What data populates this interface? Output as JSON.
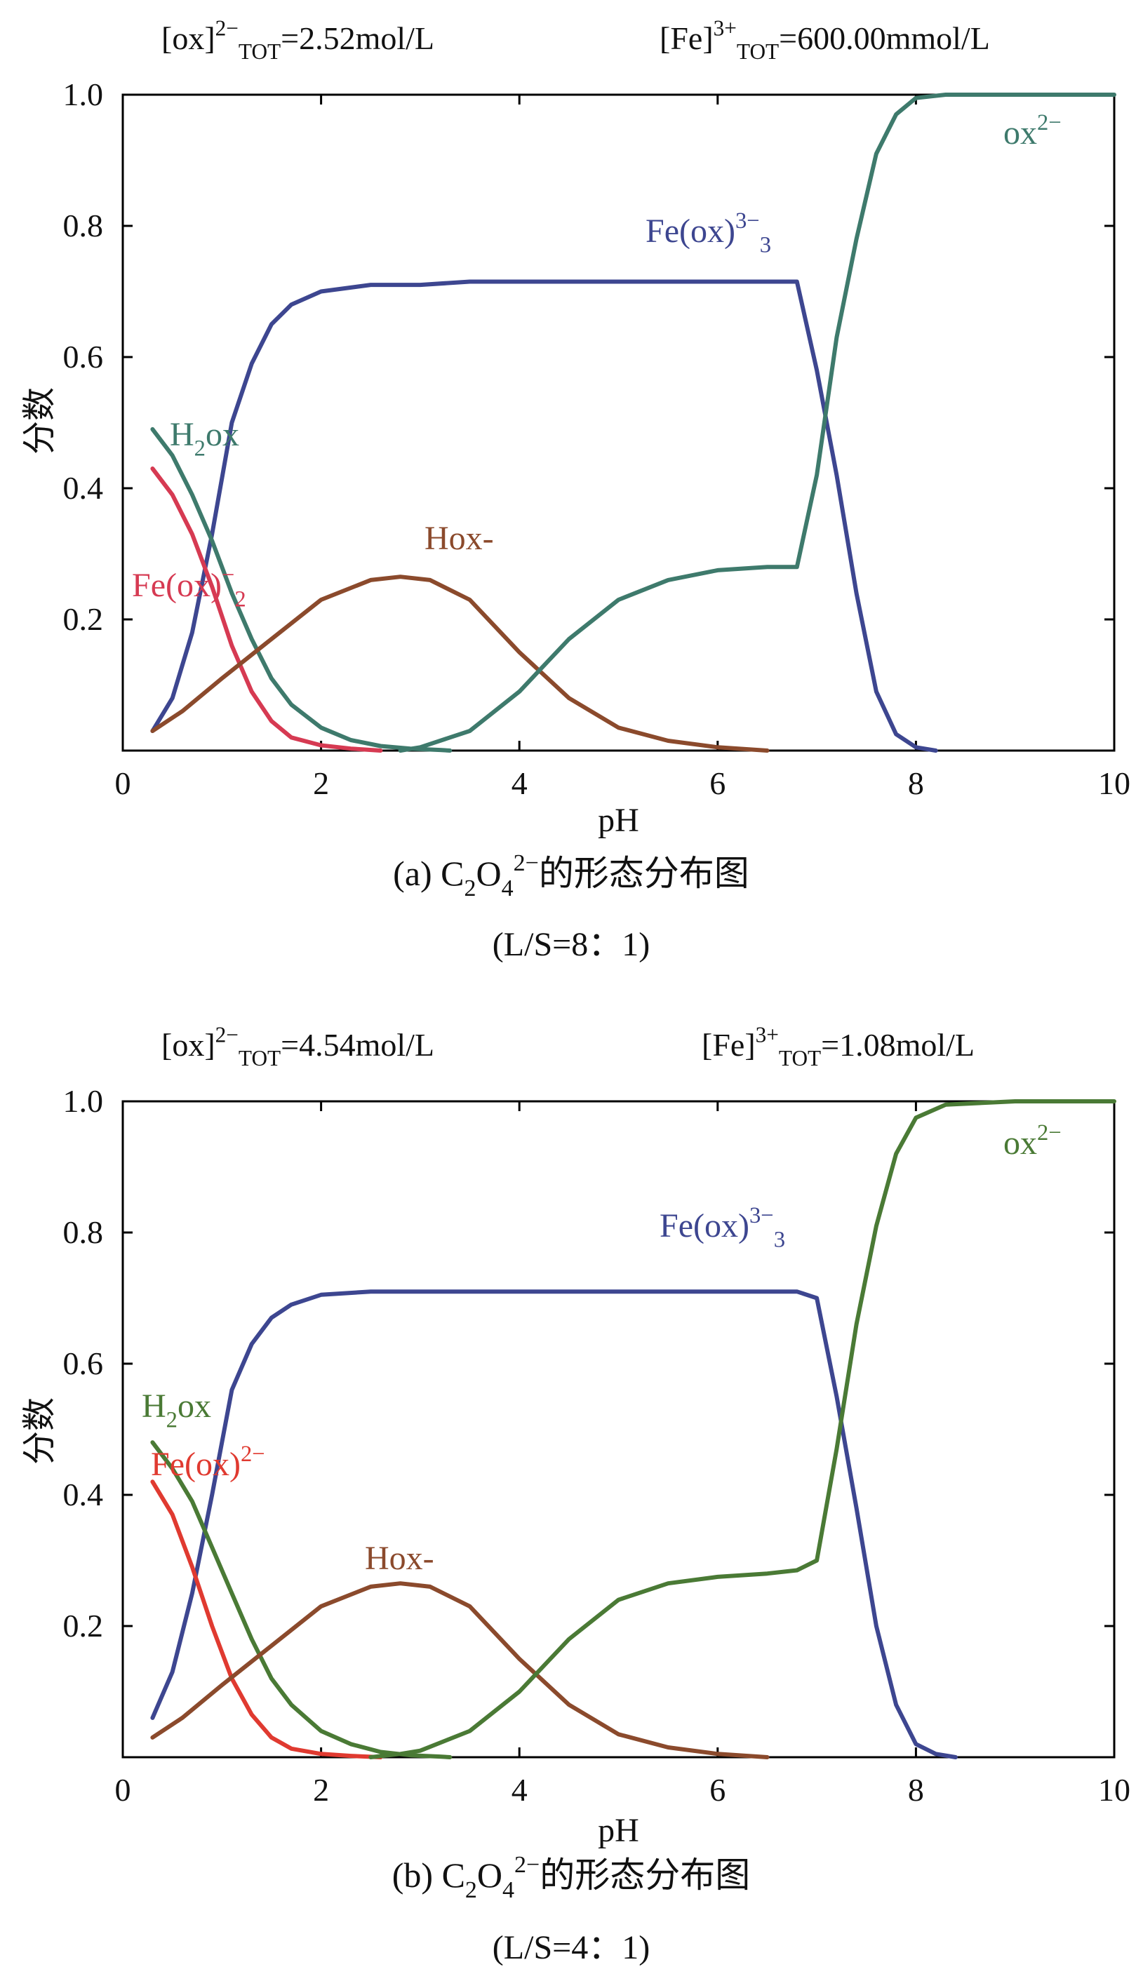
{
  "chart_data": [
    {
      "type": "line",
      "header_left": {
        "base": "[ox",
        "sup": "2−",
        "mid": "]",
        "sub": "TOT",
        "tail": "=2.52mol/L"
      },
      "header_right": {
        "base": "[Fe",
        "sup": "3+",
        "mid": "]",
        "sub": "TOT",
        "tail": "=600.00mmol/L"
      },
      "caption": {
        "pre": "(a) C",
        "sub1": "2",
        "mid": "O",
        "sub2": "4",
        "sup": "2−",
        "post": "的形态分布图"
      },
      "subcaption": "(L/S=8：1)",
      "xlabel": "pH",
      "ylabel": "分数",
      "xlim": [
        0,
        10
      ],
      "ylim": [
        0,
        1.0
      ],
      "xticks": [
        "0",
        "2",
        "4",
        "6",
        "8",
        "10"
      ],
      "yticks": [
        "0.2",
        "0.4",
        "0.6",
        "0.8",
        "1.0"
      ],
      "series": [
        {
          "name": "Fe(ox)3 3−",
          "color": "#3d4690",
          "label": {
            "base": "Fe(ox)",
            "sub": "3",
            "sup": "3−"
          },
          "x": [
            0.3,
            0.5,
            0.7,
            0.9,
            1.1,
            1.3,
            1.5,
            1.7,
            2.0,
            2.5,
            3.0,
            3.5,
            4.0,
            4.5,
            5.0,
            5.5,
            6.0,
            6.5,
            6.8,
            7.0,
            7.2,
            7.4,
            7.6,
            7.8,
            8.0,
            8.2
          ],
          "values": [
            0.03,
            0.08,
            0.18,
            0.33,
            0.5,
            0.59,
            0.65,
            0.68,
            0.7,
            0.71,
            0.71,
            0.715,
            0.715,
            0.715,
            0.715,
            0.715,
            0.715,
            0.715,
            0.715,
            0.58,
            0.42,
            0.24,
            0.09,
            0.025,
            0.005,
            0.0
          ]
        },
        {
          "name": "H2ox",
          "color": "#3e7a6c",
          "label": {
            "base": "H",
            "sub": "2",
            "tail": "ox"
          },
          "x": [
            0.3,
            0.5,
            0.7,
            0.9,
            1.1,
            1.3,
            1.5,
            1.7,
            2.0,
            2.3,
            2.6,
            2.9,
            3.2,
            3.3
          ],
          "values": [
            0.49,
            0.45,
            0.39,
            0.32,
            0.24,
            0.17,
            0.11,
            0.07,
            0.035,
            0.016,
            0.007,
            0.003,
            0.001,
            0.0
          ]
        },
        {
          "name": "Fe(ox)2 −",
          "color": "#d63a52",
          "label": {
            "base": "Fe(ox)",
            "sub": "2",
            "sup": "−"
          },
          "x": [
            0.3,
            0.5,
            0.7,
            0.9,
            1.1,
            1.3,
            1.5,
            1.7,
            2.0,
            2.3,
            2.6
          ],
          "values": [
            0.43,
            0.39,
            0.33,
            0.25,
            0.16,
            0.09,
            0.045,
            0.02,
            0.008,
            0.003,
            0.0
          ]
        },
        {
          "name": "Hox-",
          "color": "#8b4a2c",
          "label": {
            "base": "Hox-"
          },
          "x": [
            0.3,
            0.6,
            1.0,
            1.5,
            2.0,
            2.5,
            2.8,
            3.1,
            3.5,
            4.0,
            4.5,
            5.0,
            5.5,
            6.0,
            6.5
          ],
          "values": [
            0.03,
            0.06,
            0.11,
            0.17,
            0.23,
            0.26,
            0.265,
            0.26,
            0.23,
            0.15,
            0.08,
            0.035,
            0.015,
            0.005,
            0.0
          ]
        },
        {
          "name": "ox2−",
          "color": "#3e7a6c",
          "label": {
            "base": "ox",
            "sup": "2−"
          },
          "x": [
            2.8,
            3.0,
            3.5,
            4.0,
            4.5,
            5.0,
            5.5,
            6.0,
            6.5,
            6.8,
            7.0,
            7.2,
            7.4,
            7.6,
            7.8,
            8.0,
            8.3,
            9.0,
            10.0
          ],
          "values": [
            0.0,
            0.005,
            0.03,
            0.09,
            0.17,
            0.23,
            0.26,
            0.275,
            0.28,
            0.28,
            0.42,
            0.63,
            0.78,
            0.91,
            0.97,
            0.995,
            1.0,
            1.0,
            1.0
          ]
        }
      ]
    },
    {
      "type": "line",
      "header_left": {
        "base": "[ox",
        "sup": "2−",
        "mid": "]",
        "sub": "TOT",
        "tail": "=4.54mol/L"
      },
      "header_right": {
        "base": "[Fe",
        "sup": "3+",
        "mid": "]",
        "sub": "TOT",
        "tail": "=1.08mol/L"
      },
      "caption": {
        "pre": "(b) C",
        "sub1": "2",
        "mid": "O",
        "sub2": "4",
        "sup": "2−",
        "post": "的形态分布图"
      },
      "subcaption": "(L/S=4：1)",
      "xlabel": "pH",
      "ylabel": "分数",
      "xlim": [
        0,
        10
      ],
      "ylim": [
        0,
        1.0
      ],
      "xticks": [
        "0",
        "2",
        "4",
        "6",
        "8",
        "10"
      ],
      "yticks": [
        "0.2",
        "0.4",
        "0.6",
        "0.8",
        "1.0"
      ],
      "series": [
        {
          "name": "Fe(ox)3 3−",
          "color": "#3d4690",
          "label": {
            "base": "Fe(ox)",
            "sub": "3",
            "sup": "3−"
          },
          "x": [
            0.3,
            0.5,
            0.7,
            0.9,
            1.1,
            1.3,
            1.5,
            1.7,
            2.0,
            2.5,
            3.0,
            3.5,
            4.0,
            4.5,
            5.0,
            5.5,
            6.0,
            6.5,
            6.8,
            7.0,
            7.2,
            7.4,
            7.6,
            7.8,
            8.0,
            8.2,
            8.4
          ],
          "values": [
            0.06,
            0.13,
            0.25,
            0.4,
            0.56,
            0.63,
            0.67,
            0.69,
            0.705,
            0.71,
            0.71,
            0.71,
            0.71,
            0.71,
            0.71,
            0.71,
            0.71,
            0.71,
            0.71,
            0.7,
            0.55,
            0.38,
            0.2,
            0.08,
            0.02,
            0.005,
            0.0
          ]
        },
        {
          "name": "H2ox",
          "color": "#4a7a35",
          "label": {
            "base": "H",
            "sub": "2",
            "tail": "ox"
          },
          "x": [
            0.3,
            0.5,
            0.7,
            0.9,
            1.1,
            1.3,
            1.5,
            1.7,
            2.0,
            2.3,
            2.6,
            2.9,
            3.2,
            3.3
          ],
          "values": [
            0.48,
            0.44,
            0.39,
            0.32,
            0.25,
            0.18,
            0.12,
            0.08,
            0.04,
            0.02,
            0.008,
            0.003,
            0.001,
            0.0
          ]
        },
        {
          "name": "Fe(ox) 2−",
          "color": "#e03a30",
          "label": {
            "base": "Fe(ox)",
            "sup": "2−"
          },
          "x": [
            0.3,
            0.5,
            0.7,
            0.9,
            1.1,
            1.3,
            1.5,
            1.7,
            2.0,
            2.3,
            2.6
          ],
          "values": [
            0.42,
            0.37,
            0.29,
            0.2,
            0.12,
            0.065,
            0.03,
            0.013,
            0.005,
            0.002,
            0.0
          ]
        },
        {
          "name": "Hox-",
          "color": "#8b4a2c",
          "label": {
            "base": "Hox-"
          },
          "x": [
            0.3,
            0.6,
            1.0,
            1.5,
            2.0,
            2.5,
            2.8,
            3.1,
            3.5,
            4.0,
            4.5,
            5.0,
            5.5,
            6.0,
            6.5
          ],
          "values": [
            0.03,
            0.06,
            0.11,
            0.17,
            0.23,
            0.26,
            0.265,
            0.26,
            0.23,
            0.15,
            0.08,
            0.035,
            0.015,
            0.005,
            0.0
          ]
        },
        {
          "name": "ox2−",
          "color": "#4a7a35",
          "label": {
            "base": "ox",
            "sup": "2−"
          },
          "x": [
            2.5,
            2.8,
            3.0,
            3.5,
            4.0,
            4.5,
            5.0,
            5.5,
            6.0,
            6.5,
            6.8,
            7.0,
            7.2,
            7.4,
            7.6,
            7.8,
            8.0,
            8.3,
            9.0,
            10.0
          ],
          "values": [
            0.0,
            0.005,
            0.01,
            0.04,
            0.1,
            0.18,
            0.24,
            0.265,
            0.275,
            0.28,
            0.285,
            0.3,
            0.47,
            0.66,
            0.81,
            0.92,
            0.975,
            0.995,
            1.0,
            1.0
          ]
        }
      ]
    }
  ]
}
